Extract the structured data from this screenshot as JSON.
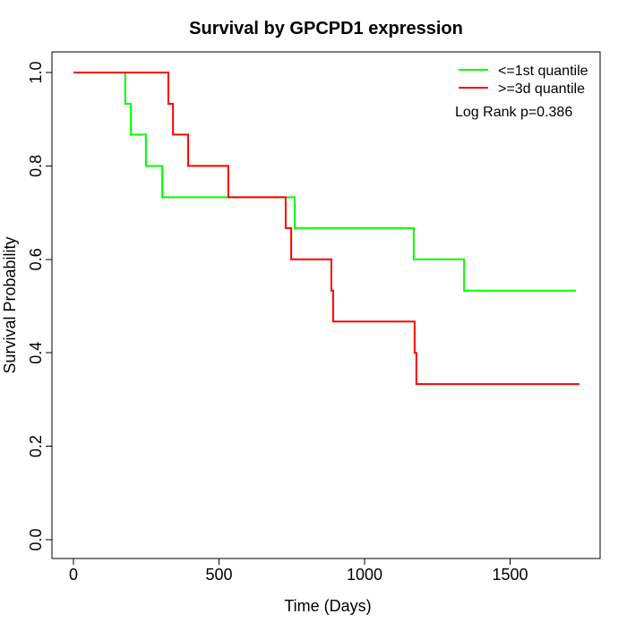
{
  "figure": {
    "background": "#ffffff",
    "text_color": "#000000"
  },
  "chart_data": {
    "type": "line",
    "variant": "kaplan-meier-step",
    "title": "Survival by GPCPD1 expression",
    "xlabel": "Time (Days)",
    "ylabel": "Survival Probability",
    "xlim": [
      0,
      1810
    ],
    "ylim": [
      0,
      1
    ],
    "grid": false,
    "legend_position": "top-right",
    "annotation": "Log Rank p=0.386",
    "xticks": [
      {
        "v": 0,
        "label": "0"
      },
      {
        "v": 500,
        "label": "500"
      },
      {
        "v": 1000,
        "label": "1000"
      },
      {
        "v": 1500,
        "label": "1500"
      }
    ],
    "yticks": [
      {
        "v": 0.0,
        "label": "0.0"
      },
      {
        "v": 0.2,
        "label": "0.2"
      },
      {
        "v": 0.4,
        "label": "0.4"
      },
      {
        "v": 0.6,
        "label": "0.6"
      },
      {
        "v": 0.8,
        "label": "0.8"
      },
      {
        "v": 1.0,
        "label": "1.0"
      }
    ],
    "series": [
      {
        "name": "<=1st quantile",
        "color": "#00ff00",
        "steps": [
          [
            0,
            1.0
          ],
          [
            178,
            0.933
          ],
          [
            197,
            0.867
          ],
          [
            249,
            0.8
          ],
          [
            305,
            0.733
          ],
          [
            760,
            0.667
          ],
          [
            1169,
            0.6
          ],
          [
            1342,
            0.533
          ]
        ],
        "end_time": 1726,
        "final_value": 0.533
      },
      {
        "name": ">=3d quantile",
        "color": "#ff0000",
        "steps": [
          [
            0,
            1.0
          ],
          [
            326,
            0.933
          ],
          [
            342,
            0.867
          ],
          [
            394,
            0.8
          ],
          [
            532,
            0.733
          ],
          [
            729,
            0.667
          ],
          [
            748,
            0.6
          ],
          [
            886,
            0.533
          ],
          [
            892,
            0.467
          ],
          [
            1172,
            0.4
          ],
          [
            1178,
            0.333
          ]
        ],
        "end_time": 1738,
        "final_value": 0.333
      }
    ]
  }
}
